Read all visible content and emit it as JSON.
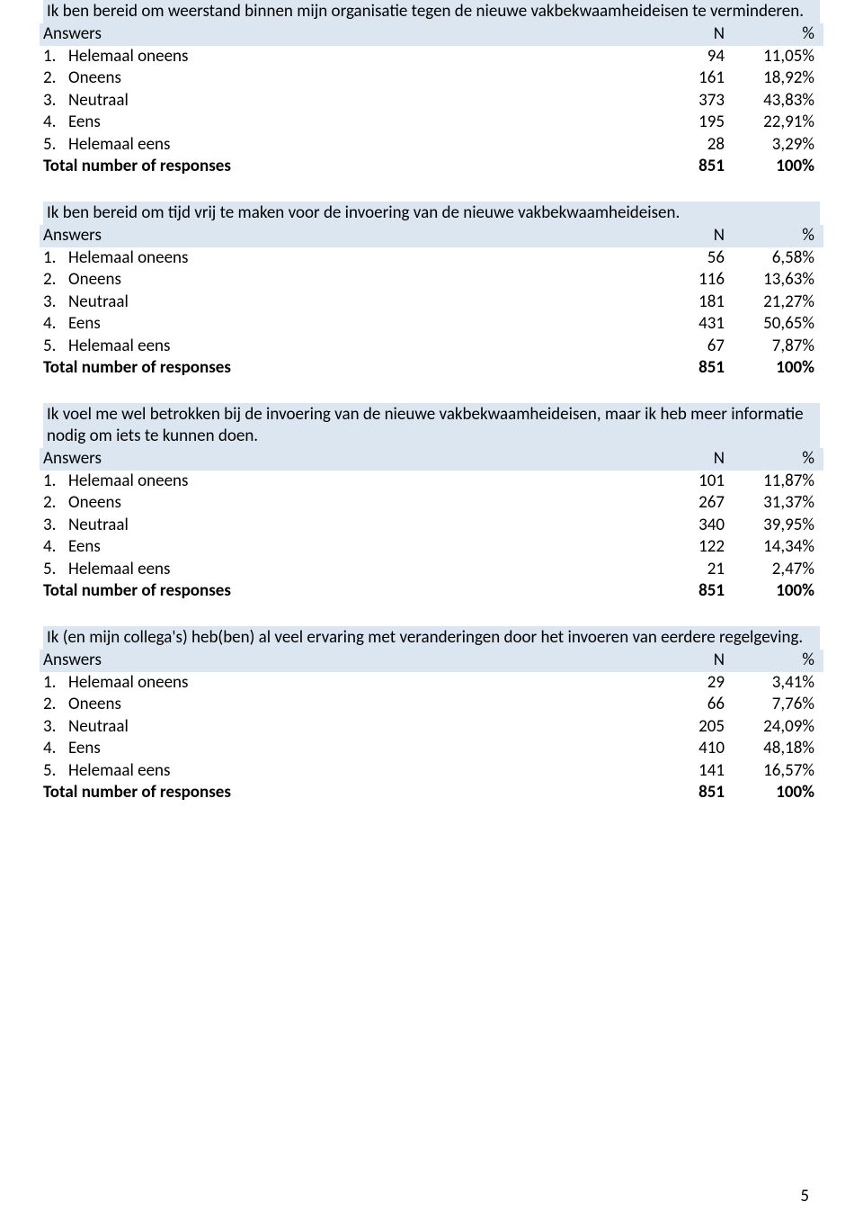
{
  "header_answers": "Answers",
  "header_n": "N",
  "header_pct": "%",
  "total_label": "Total number of responses",
  "row_labels": {
    "1": "Helemaal oneens",
    "2": "Oneens",
    "3": "Neutraal",
    "4": "Eens",
    "5": "Helemaal eens"
  },
  "questions": [
    {
      "title": "Ik ben bereid om weerstand binnen mijn organisatie tegen de nieuwe vakbekwaamheideisen te verminderen.",
      "rows": [
        {
          "n": "94",
          "pct": "11,05%"
        },
        {
          "n": "161",
          "pct": "18,92%"
        },
        {
          "n": "373",
          "pct": "43,83%"
        },
        {
          "n": "195",
          "pct": "22,91%"
        },
        {
          "n": "28",
          "pct": "3,29%"
        }
      ],
      "total_n": "851",
      "total_pct": "100%"
    },
    {
      "title": "Ik ben bereid om tijd vrij te maken voor de invoering van de nieuwe vakbekwaamheideisen.",
      "rows": [
        {
          "n": "56",
          "pct": "6,58%"
        },
        {
          "n": "116",
          "pct": "13,63%"
        },
        {
          "n": "181",
          "pct": "21,27%"
        },
        {
          "n": "431",
          "pct": "50,65%"
        },
        {
          "n": "67",
          "pct": "7,87%"
        }
      ],
      "total_n": "851",
      "total_pct": "100%"
    },
    {
      "title": "Ik voel me wel betrokken bij de invoering van de nieuwe vakbekwaamheideisen, maar ik heb meer informatie nodig om iets te kunnen doen.",
      "rows": [
        {
          "n": "101",
          "pct": "11,87%"
        },
        {
          "n": "267",
          "pct": "31,37%"
        },
        {
          "n": "340",
          "pct": "39,95%"
        },
        {
          "n": "122",
          "pct": "14,34%"
        },
        {
          "n": "21",
          "pct": "2,47%"
        }
      ],
      "total_n": "851",
      "total_pct": "100%"
    },
    {
      "title": "Ik (en mijn collega's) heb(ben) al veel ervaring met veranderingen door het invoeren van eerdere regelgeving.",
      "rows": [
        {
          "n": "29",
          "pct": "3,41%"
        },
        {
          "n": "66",
          "pct": "7,76%"
        },
        {
          "n": "205",
          "pct": "24,09%"
        },
        {
          "n": "410",
          "pct": "48,18%"
        },
        {
          "n": "141",
          "pct": "16,57%"
        }
      ],
      "total_n": "851",
      "total_pct": "100%"
    }
  ],
  "page_number": "5"
}
